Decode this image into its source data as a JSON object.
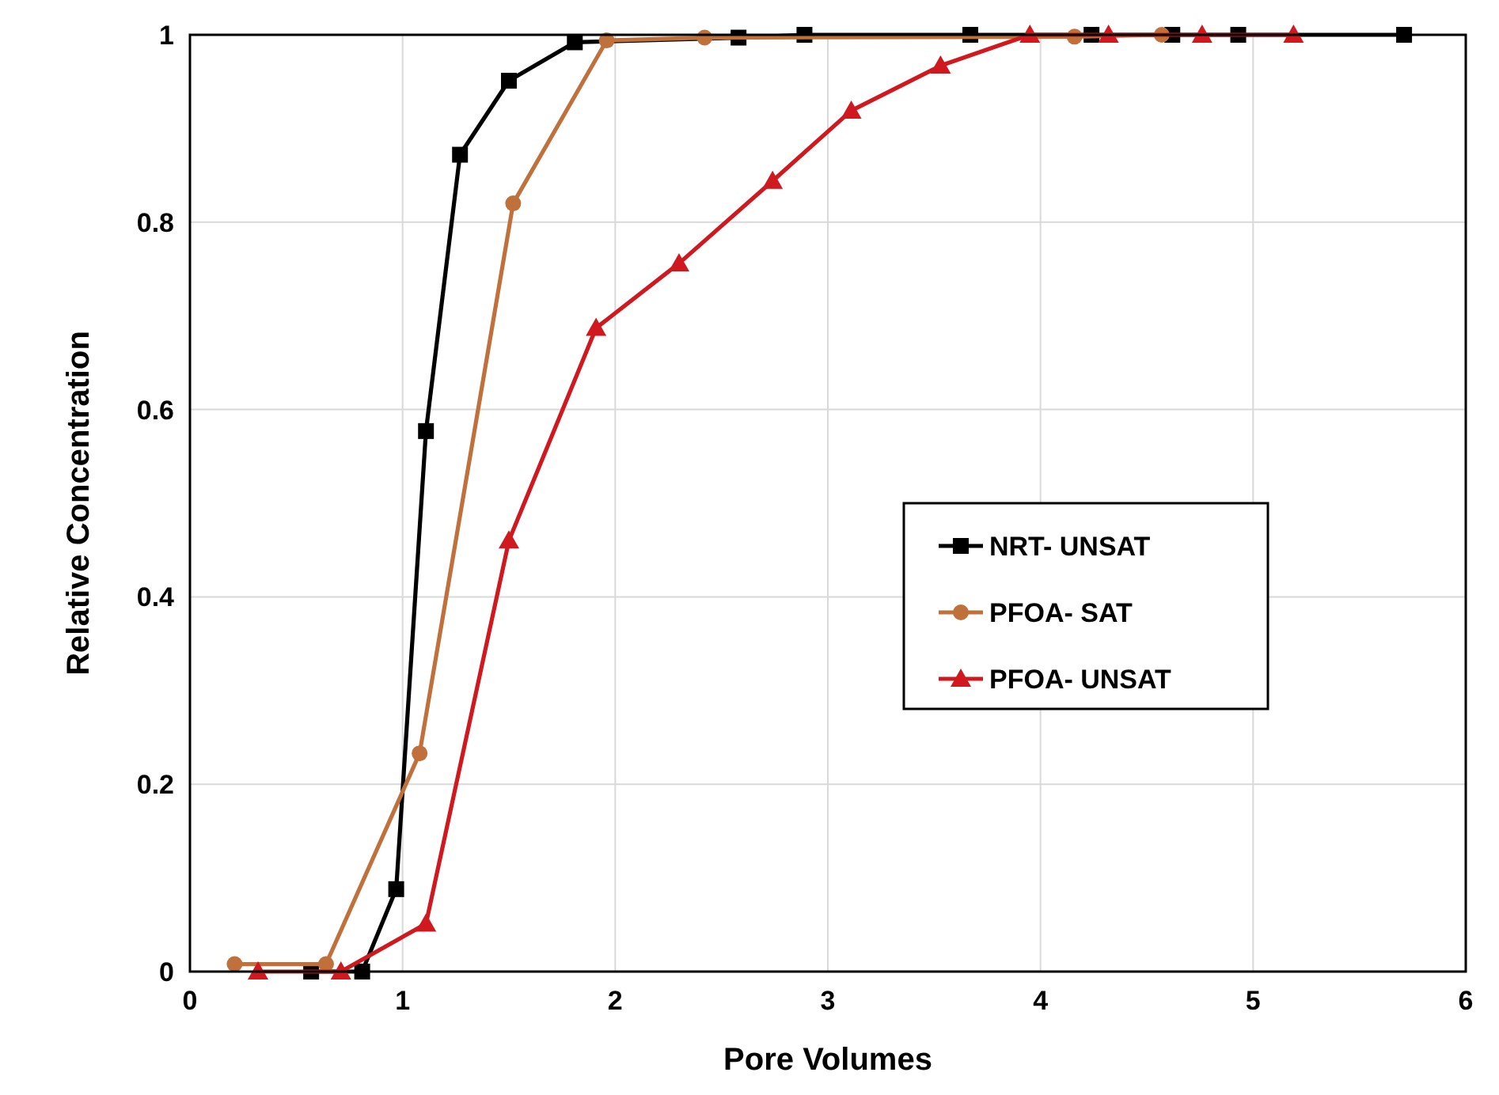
{
  "chart_data": {
    "type": "line",
    "xlabel": "Pore Volumes",
    "ylabel": "Relative Concentration",
    "xlim": [
      0,
      6
    ],
    "xticks": [
      0,
      1,
      2,
      3,
      4,
      5,
      6
    ],
    "ylim": [
      0,
      1
    ],
    "yticks": [
      0,
      0.2,
      0.4,
      0.6,
      0.8,
      1
    ],
    "grid": true,
    "legend": "right",
    "line_style": "solid",
    "series": [
      {
        "name": "NRT- UNSAT",
        "color": "#000000",
        "marker": "square",
        "x": [
          0.57,
          0.81,
          0.97,
          1.11,
          1.27,
          1.5,
          1.81,
          2.58,
          2.89,
          3.67,
          4.24,
          4.62,
          4.93,
          5.71
        ],
        "values": [
          0,
          0,
          0.088,
          0.577,
          0.872,
          0.951,
          0.992,
          0.997,
          1,
          1,
          1,
          1,
          1,
          1
        ]
      },
      {
        "name": "PFOA- SAT",
        "color": "#c0703a",
        "marker": "circle",
        "x": [
          0.21,
          0.64,
          1.08,
          1.52,
          1.96,
          2.42,
          4.16,
          4.57
        ],
        "values": [
          0.008,
          0.008,
          0.233,
          0.82,
          0.994,
          0.997,
          0.998,
          1
        ]
      },
      {
        "name": "PFOA- UNSAT",
        "color": "#d0181f",
        "marker": "triangle",
        "x": [
          0.32,
          0.71,
          1.11,
          1.5,
          1.91,
          2.3,
          2.74,
          3.11,
          3.53,
          3.95,
          4.32,
          4.76,
          5.19
        ],
        "values": [
          0,
          0,
          0.051,
          0.46,
          0.687,
          0.756,
          0.844,
          0.919,
          0.967,
          1,
          1,
          1,
          1
        ]
      }
    ]
  }
}
